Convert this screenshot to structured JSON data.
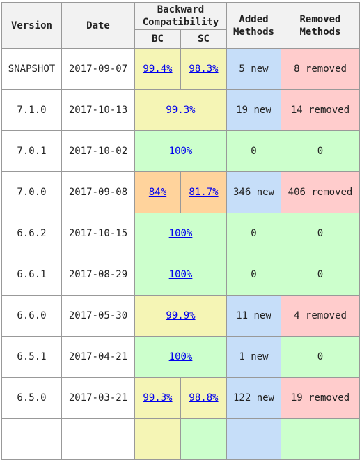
{
  "headers": {
    "version": "Version",
    "date": "Date",
    "compat_line1": "Backward",
    "compat_line2": "Compatibility",
    "bc": "BC",
    "sc": "SC",
    "added_line1": "Added",
    "added_line2": "Methods",
    "removed_line1": "Removed",
    "removed_line2": "Methods"
  },
  "colors": {
    "green": "#ccffcc",
    "yellow": "#f5f5b5",
    "orange": "#ffd39c",
    "blue": "#c6def9",
    "red": "#ffcccc",
    "header_bg": "#f2f2f2",
    "link": "#0000ee",
    "border": "#999999"
  },
  "rows": [
    {
      "version": "SNAPSHOT",
      "date": "2017-09-07",
      "merged": false,
      "bc": "99.4%",
      "bc_color": "yellow",
      "sc": "98.3%",
      "sc_color": "yellow",
      "added": "5 new",
      "added_color": "blue",
      "removed": "8 removed",
      "removed_color": "red"
    },
    {
      "version": "7.1.0",
      "date": "2017-10-13",
      "merged": true,
      "compat": "99.3%",
      "compat_color": "yellow",
      "added": "19 new",
      "added_color": "blue",
      "removed": "14 removed",
      "removed_color": "red"
    },
    {
      "version": "7.0.1",
      "date": "2017-10-02",
      "merged": true,
      "compat": "100%",
      "compat_color": "green",
      "added": "0",
      "added_color": "green",
      "removed": "0",
      "removed_color": "green"
    },
    {
      "version": "7.0.0",
      "date": "2017-09-08",
      "merged": false,
      "bc": "84%",
      "bc_color": "orange",
      "sc": "81.7%",
      "sc_color": "orange",
      "added": "346 new",
      "added_color": "blue",
      "removed": "406 removed",
      "removed_color": "red"
    },
    {
      "version": "6.6.2",
      "date": "2017-10-15",
      "merged": true,
      "compat": "100%",
      "compat_color": "green",
      "added": "0",
      "added_color": "green",
      "removed": "0",
      "removed_color": "green"
    },
    {
      "version": "6.6.1",
      "date": "2017-08-29",
      "merged": true,
      "compat": "100%",
      "compat_color": "green",
      "added": "0",
      "added_color": "green",
      "removed": "0",
      "removed_color": "green"
    },
    {
      "version": "6.6.0",
      "date": "2017-05-30",
      "merged": true,
      "compat": "99.9%",
      "compat_color": "yellow",
      "added": "11 new",
      "added_color": "blue",
      "removed": "4 removed",
      "removed_color": "red"
    },
    {
      "version": "6.5.1",
      "date": "2017-04-21",
      "merged": true,
      "compat": "100%",
      "compat_color": "green",
      "added": "1 new",
      "added_color": "blue",
      "removed": "0",
      "removed_color": "green"
    },
    {
      "version": "6.5.0",
      "date": "2017-03-21",
      "merged": false,
      "bc": "99.3%",
      "bc_color": "yellow",
      "sc": "98.8%",
      "sc_color": "yellow",
      "added": "122 new",
      "added_color": "blue",
      "removed": "19 removed",
      "removed_color": "red"
    },
    {
      "version": "",
      "date": "",
      "merged": false,
      "bc": "",
      "bc_color": "yellow",
      "sc": "",
      "sc_color": "green",
      "added": "",
      "added_color": "blue",
      "removed": "",
      "removed_color": "green"
    }
  ]
}
